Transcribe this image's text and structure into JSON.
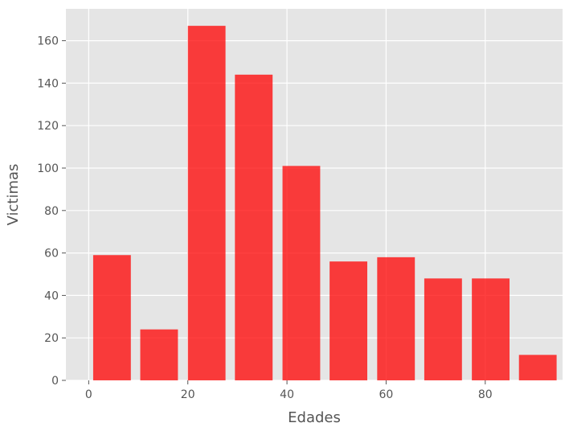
{
  "chart_data": {
    "type": "bar",
    "xlabel": "Edades",
    "ylabel": "Victimas",
    "xlim": [
      -4.6,
      95.6
    ],
    "ylim": [
      0,
      175
    ],
    "xticks": [
      0,
      20,
      40,
      60,
      80
    ],
    "yticks": [
      0,
      20,
      40,
      60,
      80,
      100,
      120,
      140,
      160
    ],
    "bar_width": 7.6,
    "grid": true,
    "background": "#E5E5E5",
    "grid_color": "#FFFFFF",
    "bar_color": "#FF0000",
    "bar_opacity": 0.75,
    "bars": [
      {
        "x": 4.7,
        "value": 59
      },
      {
        "x": 14.2,
        "value": 24
      },
      {
        "x": 23.8,
        "value": 167
      },
      {
        "x": 33.3,
        "value": 144
      },
      {
        "x": 42.9,
        "value": 101
      },
      {
        "x": 52.4,
        "value": 56
      },
      {
        "x": 62.0,
        "value": 58
      },
      {
        "x": 71.5,
        "value": 48
      },
      {
        "x": 81.1,
        "value": 48
      },
      {
        "x": 90.6,
        "value": 12
      }
    ]
  }
}
